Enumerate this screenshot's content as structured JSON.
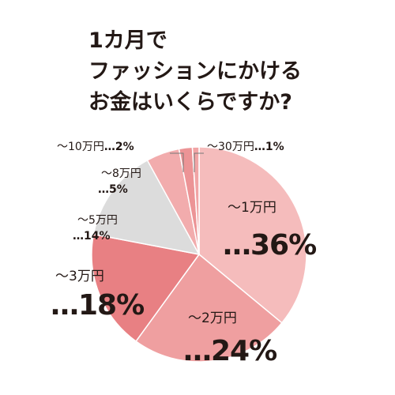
{
  "chart_data": {
    "type": "pie",
    "title": [
      "1カ月で",
      "ファッションにかける",
      "お金はいくらですか?"
    ],
    "categories": [
      "〜1万円",
      "〜2万円",
      "〜3万円",
      "〜5万円",
      "〜8万円",
      "〜10万円",
      "〜30万円"
    ],
    "values": [
      36,
      24,
      18,
      14,
      5,
      2,
      1
    ],
    "value_labels": [
      "…36%",
      "…24%",
      "…18%",
      "…14%",
      "…5%",
      "…2%",
      "…1%"
    ],
    "colors": [
      "#f5bcbc",
      "#ef9fa0",
      "#e88083",
      "#dcdcdc",
      "#f2acad",
      "#ec9496",
      "#f1a4a5"
    ]
  }
}
